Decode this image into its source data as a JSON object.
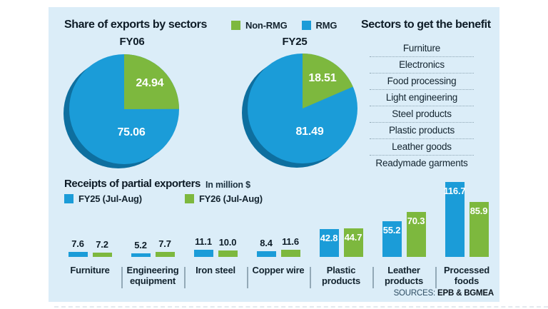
{
  "exports_section": {
    "title": "Share of exports by sectors",
    "legend": [
      {
        "label": "Non-RMG",
        "color": "#7db83e"
      },
      {
        "label": "RMG",
        "color": "#1b9cd8"
      }
    ],
    "pie_shadow_color": "#0e6f9f"
  },
  "benefit_section": {
    "title": "Sectors to get the benefit",
    "items": [
      "Furniture",
      "Electronics",
      "Food processing",
      "Light engineering",
      "Steel products",
      "Plastic products",
      "Leather goods",
      "Readymade garments"
    ]
  },
  "receipts_section": {
    "title": "Receipts of partial exporters",
    "unit": "In million $",
    "legend": [
      {
        "label": "FY25 (Jul-Aug)",
        "color": "#1b9cd8"
      },
      {
        "label": "FY26 (Jul-Aug)",
        "color": "#7db83e"
      }
    ]
  },
  "sources": {
    "label": "SOURCES:",
    "value": "EPB & BGMEA"
  },
  "chart_data": [
    {
      "type": "pie",
      "title": "FY06",
      "slices": [
        {
          "name": "Non-RMG",
          "value": 24.94,
          "color": "#7db83e"
        },
        {
          "name": "RMG",
          "value": 75.06,
          "color": "#1b9cd8"
        }
      ]
    },
    {
      "type": "pie",
      "title": "FY25",
      "slices": [
        {
          "name": "Non-RMG",
          "value": 18.51,
          "color": "#7db83e"
        },
        {
          "name": "RMG",
          "value": 81.49,
          "color": "#1b9cd8"
        }
      ]
    },
    {
      "type": "bar",
      "title": "Receipts of partial exporters",
      "unit": "In million $",
      "categories": [
        "Furniture",
        "Engineering equipment",
        "Iron steel",
        "Copper wire",
        "Plastic products",
        "Leather products",
        "Processed foods"
      ],
      "series": [
        {
          "name": "FY25 (Jul-Aug)",
          "color": "#1b9cd8",
          "values": [
            7.6,
            5.2,
            11.1,
            8.4,
            42.8,
            55.2,
            116.7
          ]
        },
        {
          "name": "FY26 (Jul-Aug)",
          "color": "#7db83e",
          "values": [
            7.2,
            7.7,
            10.0,
            11.6,
            44.7,
            70.3,
            85.9
          ]
        }
      ],
      "ylim": [
        0,
        120
      ],
      "legend_position": "top-left",
      "grid": false
    }
  ]
}
